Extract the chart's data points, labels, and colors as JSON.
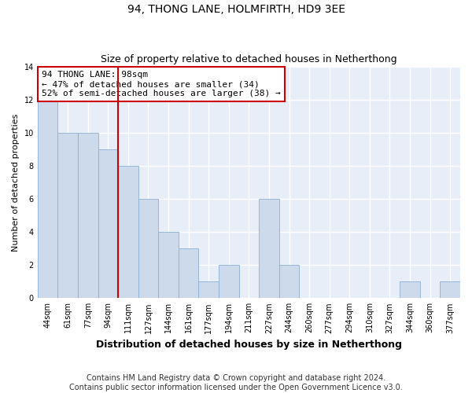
{
  "title": "94, THONG LANE, HOLMFIRTH, HD9 3EE",
  "subtitle": "Size of property relative to detached houses in Netherthong",
  "xlabel": "Distribution of detached houses by size in Netherthong",
  "ylabel": "Number of detached properties",
  "categories": [
    "44sqm",
    "61sqm",
    "77sqm",
    "94sqm",
    "111sqm",
    "127sqm",
    "144sqm",
    "161sqm",
    "177sqm",
    "194sqm",
    "211sqm",
    "227sqm",
    "244sqm",
    "260sqm",
    "277sqm",
    "294sqm",
    "310sqm",
    "327sqm",
    "344sqm",
    "360sqm",
    "377sqm"
  ],
  "values": [
    12,
    10,
    10,
    9,
    8,
    6,
    4,
    3,
    1,
    2,
    0,
    6,
    2,
    0,
    0,
    0,
    0,
    0,
    1,
    0,
    1
  ],
  "bar_color": "#cddaec",
  "bar_edge_color": "#8aafd4",
  "vline_x": 3.5,
  "vline_color": "#cc0000",
  "annotation_text": "94 THONG LANE: 98sqm\n← 47% of detached houses are smaller (34)\n52% of semi-detached houses are larger (38) →",
  "annotation_box_color": "#cc0000",
  "ylim": [
    0,
    14
  ],
  "yticks": [
    0,
    2,
    4,
    6,
    8,
    10,
    12,
    14
  ],
  "footer_line1": "Contains HM Land Registry data © Crown copyright and database right 2024.",
  "footer_line2": "Contains public sector information licensed under the Open Government Licence v3.0.",
  "bg_color": "#e8eef8",
  "grid_color": "#ffffff",
  "title_fontsize": 10,
  "subtitle_fontsize": 9,
  "xlabel_fontsize": 9,
  "ylabel_fontsize": 8,
  "tick_fontsize": 7,
  "annotation_fontsize": 8,
  "footer_fontsize": 7
}
